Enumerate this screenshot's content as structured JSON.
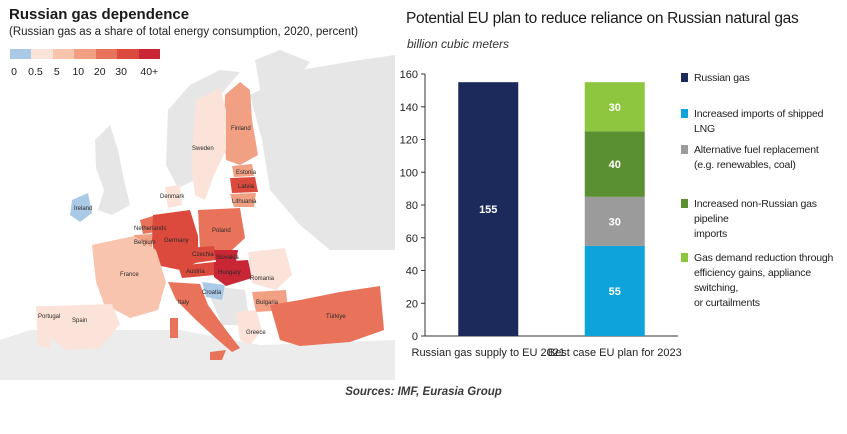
{
  "map": {
    "title": "Russian gas dependence",
    "subtitle": "(Russian gas as a share of total energy consumption, 2020, percent)",
    "legend": {
      "ticks": [
        "0",
        "0.5",
        "5",
        "10",
        "20",
        "30",
        "40+"
      ],
      "colors": [
        "#a9c9e6",
        "#fbe3d9",
        "#f8c4ae",
        "#f2a083",
        "#e8735a",
        "#dc4a3d",
        "#c92735"
      ]
    },
    "labels": {
      "finland": "Finland",
      "sweden": "Sweden",
      "estonia": "Estonia",
      "latvia": "Latvia",
      "lithuania": "Lithuania",
      "denmark": "Denmark",
      "ireland": "Ireland",
      "netherlands": "Netherlands",
      "belgium": "Belgium",
      "germany": "Germany",
      "poland": "Poland",
      "czechia": "Czechia",
      "slovakia": "Slovakia",
      "austria": "Austria",
      "hungary": "Hungary",
      "france": "France",
      "romania": "Romania",
      "croatia": "Croatia",
      "bulgaria": "Bulgaria",
      "italy": "Italy",
      "portugal": "Portugal",
      "spain": "Spain",
      "greece": "Greece",
      "turkiye": "Türkiye"
    }
  },
  "chart_data": {
    "type": "bar",
    "stacked": true,
    "title": "Potential EU plan to reduce reliance on Russian natural gas",
    "unit_label": "billion cubic meters",
    "categories": [
      "Russian gas supply to EU 2021",
      "Best case EU plan for 2023"
    ],
    "ylim": [
      0,
      160
    ],
    "yticks": [
      0,
      20,
      40,
      60,
      80,
      100,
      120,
      140,
      160
    ],
    "grid": false,
    "legend_position": "right",
    "series": [
      {
        "name": "Russian gas",
        "color": "#1b2a5a",
        "values": [
          155,
          0
        ]
      },
      {
        "name": "Increased imports of shipped LNG",
        "color": "#0fa3dc",
        "values": [
          0,
          55
        ]
      },
      {
        "name": "Alternative fuel replacement (e.g. renewables, coal)",
        "color": "#9b9b9b",
        "values": [
          0,
          30
        ]
      },
      {
        "name": "Increased non-Russian gas pipeline imports",
        "color": "#5a8f32",
        "values": [
          0,
          40
        ]
      },
      {
        "name": "Gas demand reduction through efficiency gains, appliance switching, or curtailments",
        "color": "#8ec63f",
        "values": [
          0,
          30
        ]
      }
    ],
    "data_labels": [
      [
        "155"
      ],
      [
        "55",
        "30",
        "40",
        "30"
      ]
    ]
  },
  "legend_lines": [
    [
      "Russian gas"
    ],
    [
      "Increased imports of shipped LNG"
    ],
    [
      "Alternative fuel replacement",
      "(e.g. renewables, coal)"
    ],
    [
      "Increased non-Russian gas pipeline",
      "imports"
    ],
    [
      "Gas demand reduction through",
      "efficiency gains, appliance switching,",
      "or curtailments"
    ]
  ],
  "footer": {
    "sources": "Sources: IMF, Eurasia Group"
  }
}
